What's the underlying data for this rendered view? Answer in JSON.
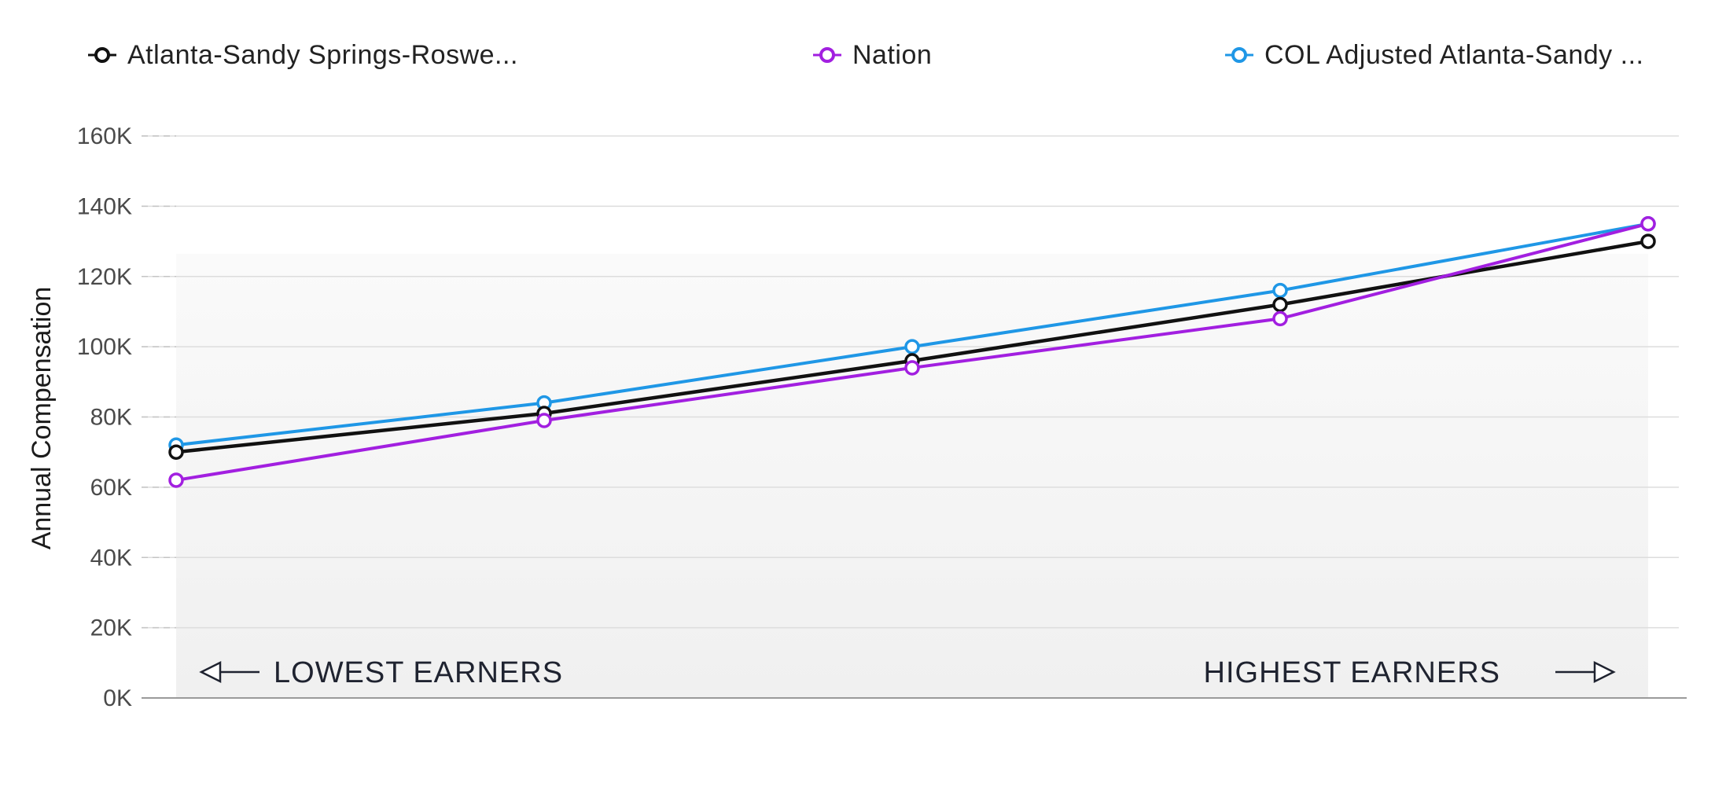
{
  "chart_data": {
    "type": "line",
    "title": "",
    "ylabel": "Annual Compensation",
    "xlabel": "",
    "ylim": [
      0,
      160000
    ],
    "yticks": [
      "0K",
      "20K",
      "40K",
      "60K",
      "80K",
      "100K",
      "120K",
      "140K",
      "160K"
    ],
    "ytick_values": [
      0,
      20000,
      40000,
      60000,
      80000,
      100000,
      120000,
      140000,
      160000
    ],
    "x_point_count": 5,
    "grid": true,
    "legend_position": "top",
    "series": [
      {
        "name": "Atlanta-Sandy Springs-Roswe...",
        "color": "#111111",
        "values": [
          70000,
          81000,
          96000,
          112000,
          130000
        ]
      },
      {
        "name": "Nation",
        "color": "#a21fe0",
        "values": [
          62000,
          79000,
          94000,
          108000,
          135000
        ]
      },
      {
        "name": "COL Adjusted Atlanta-Sandy ...",
        "color": "#1f97e6",
        "values": [
          72000,
          84000,
          100000,
          116000,
          135000
        ]
      }
    ],
    "annotations": {
      "left": "LOWEST EARNERS",
      "right": "HIGHEST EARNERS",
      "left_arrow_icon": "arrow-left-icon",
      "right_arrow_icon": "arrow-right-icon"
    }
  }
}
